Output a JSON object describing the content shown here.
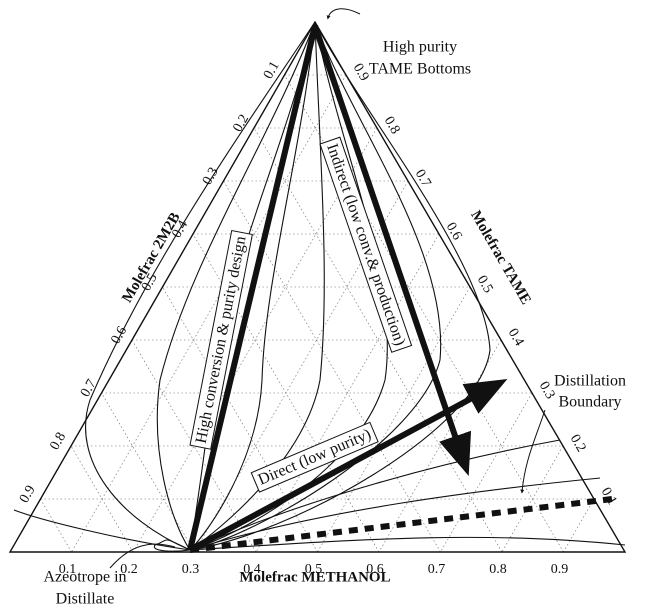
{
  "axes": {
    "bottom": {
      "label": "Molefrac METHANOL",
      "ticks": [
        0.1,
        0.2,
        0.3,
        0.4,
        0.5,
        0.6,
        0.7,
        0.8,
        0.9
      ]
    },
    "left": {
      "label": "Molefrac 2M2B",
      "ticks": [
        0.1,
        0.2,
        0.3,
        0.4,
        0.5,
        0.6,
        0.7,
        0.8,
        0.9
      ]
    },
    "right": {
      "label": "Molefrac TAME",
      "ticks": [
        0.9,
        0.8,
        0.7,
        0.6,
        0.5,
        0.4,
        0.3,
        0.2,
        0.1
      ]
    }
  },
  "annotations": {
    "top": [
      "High purity",
      "TAME Bottoms"
    ],
    "indirect": "Indirect (low conv.& production)",
    "high_conversion": "High conversion & purity design",
    "direct": "Direct (low purity)",
    "boundary": [
      "Distillation",
      "Boundary"
    ],
    "azeotrope": [
      "Azeotrope in",
      "Distillate"
    ]
  }
}
